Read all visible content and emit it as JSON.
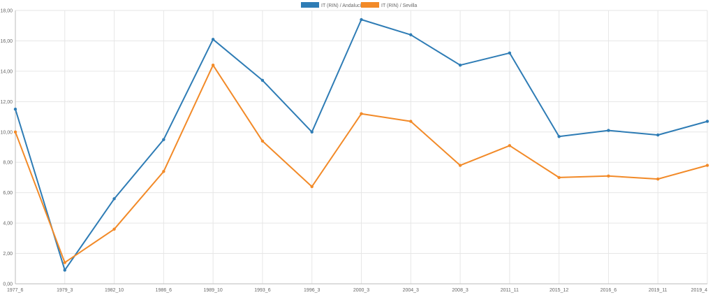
{
  "chart_data": {
    "type": "line",
    "title": "",
    "xlabel": "",
    "ylabel": "",
    "ylim": [
      0,
      18
    ],
    "y_ticks": [
      "0,00",
      "2,00",
      "4,00",
      "6,00",
      "8,00",
      "10,00",
      "12,00",
      "14,00",
      "16,00",
      "18,00"
    ],
    "grid": true,
    "legend_position": "top",
    "categories": [
      "1977_6",
      "1979_3",
      "1982_10",
      "1986_6",
      "1989_10",
      "1993_6",
      "1996_3",
      "2000_3",
      "2004_3",
      "2008_3",
      "2011_11",
      "2015_12",
      "2016_6",
      "2019_11",
      "2019_4"
    ],
    "series": [
      {
        "name": "IT (RIN) / Andalucía",
        "color": "#2e7cb5",
        "values": [
          11.5,
          0.9,
          5.6,
          9.5,
          16.1,
          13.4,
          10.0,
          17.4,
          16.4,
          14.4,
          15.2,
          9.7,
          10.1,
          9.8,
          10.7
        ]
      },
      {
        "name": "IT (RIN) / Sevilla",
        "color": "#f28a28",
        "values": [
          10.0,
          1.4,
          3.6,
          7.4,
          14.4,
          9.4,
          6.4,
          11.2,
          10.7,
          7.8,
          9.1,
          7.0,
          7.1,
          6.9,
          7.8
        ]
      }
    ]
  }
}
